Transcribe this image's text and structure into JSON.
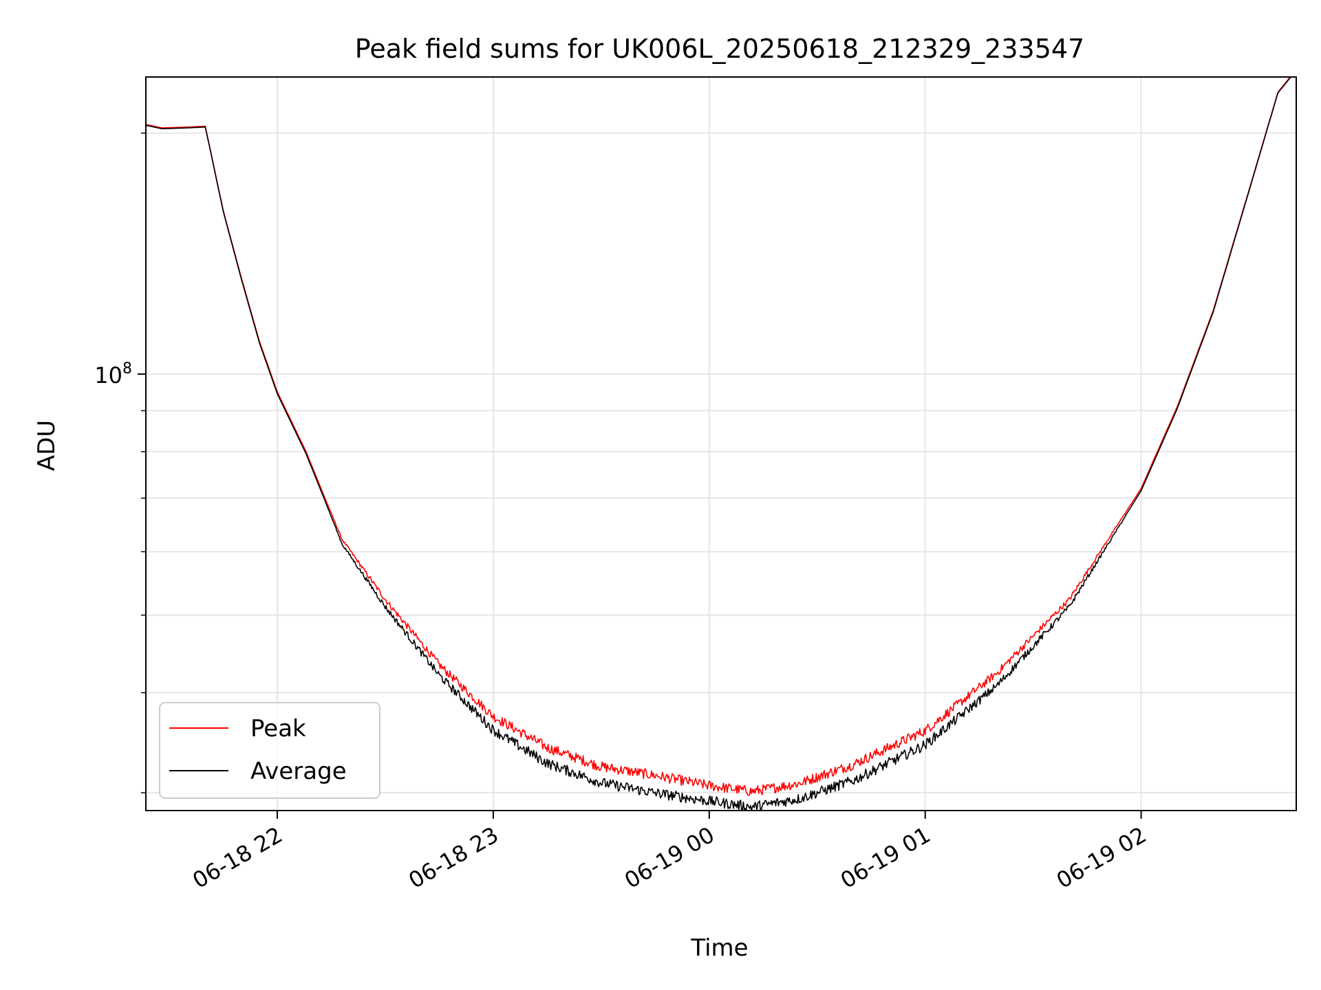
{
  "chart_data": {
    "type": "line",
    "title": "Peak field sums for UK006L_20250618_212329_233547",
    "xlabel": "Time",
    "ylabel": "ADU",
    "x_scale": "time",
    "y_scale": "log",
    "xlim": [
      "2025-06-18 21:23:29",
      "2025-06-19 02:43:05"
    ],
    "ylim": [
      28500000,
      235000000
    ],
    "x_ticks": [
      {
        "value": "2025-06-18 22:00",
        "label": "06-18 22"
      },
      {
        "value": "2025-06-18 23:00",
        "label": "06-18 23"
      },
      {
        "value": "2025-06-19 00:00",
        "label": "06-19 00"
      },
      {
        "value": "2025-06-19 01:00",
        "label": "06-19 01"
      },
      {
        "value": "2025-06-19 02:00",
        "label": "06-19 02"
      }
    ],
    "y_ticks": [
      {
        "value": 100000000,
        "label_base": "10",
        "label_exp": "8"
      }
    ],
    "y_minor_ticks": [
      30000000,
      40000000,
      50000000,
      60000000,
      70000000,
      80000000,
      90000000,
      200000000
    ],
    "grid": true,
    "legend_position": "lower-left",
    "colors": {
      "peak": "#ff0000",
      "average": "#000000",
      "grid": "#e6e6e6"
    },
    "series": [
      {
        "name": "Peak",
        "color": "#ff0000",
        "noise": 0.03,
        "points": [
          [
            "2025-06-18 21:23:29",
            205000000
          ],
          [
            "2025-06-18 21:28:00",
            203000000
          ],
          [
            "2025-06-18 21:35:00",
            203500000
          ],
          [
            "2025-06-18 21:40:00",
            204000000
          ],
          [
            "2025-06-18 21:45:00",
            160000000
          ],
          [
            "2025-06-18 21:50:00",
            132000000
          ],
          [
            "2025-06-18 21:55:00",
            110000000
          ],
          [
            "2025-06-18 22:00:00",
            95000000
          ],
          [
            "2025-06-18 22:08:00",
            80000000
          ],
          [
            "2025-06-18 22:18:00",
            62000000
          ],
          [
            "2025-06-18 22:30:00",
            52000000
          ],
          [
            "2025-06-18 22:45:00",
            43000000
          ],
          [
            "2025-06-18 23:00:00",
            37000000
          ],
          [
            "2025-06-18 23:15:00",
            33800000
          ],
          [
            "2025-06-18 23:30:00",
            32000000
          ],
          [
            "2025-06-18 23:45:00",
            31200000
          ],
          [
            "2025-06-19 00:00:00",
            30300000
          ],
          [
            "2025-06-19 00:12:00",
            29800000
          ],
          [
            "2025-06-19 00:25:00",
            30500000
          ],
          [
            "2025-06-19 00:40:00",
            32200000
          ],
          [
            "2025-06-19 01:00:00",
            35500000
          ],
          [
            "2025-06-19 01:20:00",
            42000000
          ],
          [
            "2025-06-19 01:40:00",
            52000000
          ],
          [
            "2025-06-19 02:00:00",
            72000000
          ],
          [
            "2025-06-19 02:10:00",
            91000000
          ],
          [
            "2025-06-19 02:20:00",
            120000000
          ],
          [
            "2025-06-19 02:30:00",
            170000000
          ],
          [
            "2025-06-19 02:38:00",
            225000000
          ],
          [
            "2025-06-19 02:43:05",
            240000000
          ]
        ]
      },
      {
        "name": "Average",
        "color": "#000000",
        "noise": 0.03,
        "points": [
          [
            "2025-06-18 21:23:29",
            204500000
          ],
          [
            "2025-06-18 21:28:00",
            202500000
          ],
          [
            "2025-06-18 21:35:00",
            203000000
          ],
          [
            "2025-06-18 21:40:00",
            203500000
          ],
          [
            "2025-06-18 21:45:00",
            159500000
          ],
          [
            "2025-06-18 21:50:00",
            131500000
          ],
          [
            "2025-06-18 21:55:00",
            109500000
          ],
          [
            "2025-06-18 22:00:00",
            94500000
          ],
          [
            "2025-06-18 22:08:00",
            79500000
          ],
          [
            "2025-06-18 22:18:00",
            61500000
          ],
          [
            "2025-06-18 22:30:00",
            51500000
          ],
          [
            "2025-06-18 22:45:00",
            42400000
          ],
          [
            "2025-06-18 23:00:00",
            36300000
          ],
          [
            "2025-06-18 23:15:00",
            33000000
          ],
          [
            "2025-06-18 23:30:00",
            31200000
          ],
          [
            "2025-06-18 23:45:00",
            30300000
          ],
          [
            "2025-06-19 00:00:00",
            29600000
          ],
          [
            "2025-06-19 00:12:00",
            29100000
          ],
          [
            "2025-06-19 00:25:00",
            29800000
          ],
          [
            "2025-06-19 00:40:00",
            31400000
          ],
          [
            "2025-06-19 01:00:00",
            34800000
          ],
          [
            "2025-06-19 01:20:00",
            41200000
          ],
          [
            "2025-06-19 01:40:00",
            51500000
          ],
          [
            "2025-06-19 02:00:00",
            71500000
          ],
          [
            "2025-06-19 02:10:00",
            90500000
          ],
          [
            "2025-06-19 02:20:00",
            119500000
          ],
          [
            "2025-06-19 02:30:00",
            169500000
          ],
          [
            "2025-06-19 02:38:00",
            224500000
          ],
          [
            "2025-06-19 02:43:05",
            239500000
          ]
        ]
      }
    ]
  }
}
